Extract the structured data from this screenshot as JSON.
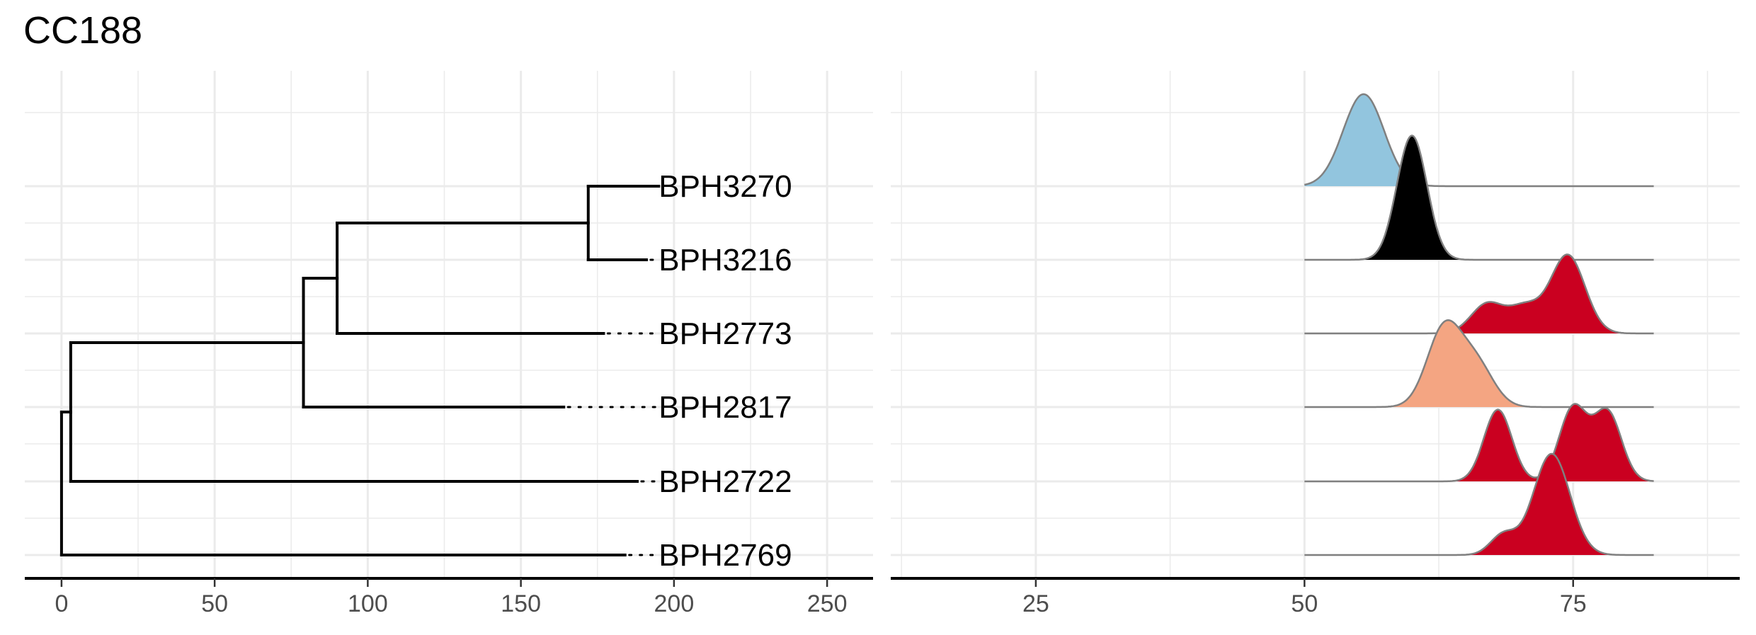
{
  "title": "CC188",
  "colors": {
    "grid": "#ebebeb",
    "axis": "#000000",
    "tree_line": "#000000",
    "tick_text": "#4d4d4d",
    "ridge_outline": "#808080"
  },
  "chart_data": [
    {
      "type": "dendrogram",
      "title": "CC188",
      "xlabel": "",
      "ylabel": "",
      "xlim": [
        -12,
        265
      ],
      "xticks": [
        0,
        50,
        100,
        150,
        200,
        250
      ],
      "xtick_labels": [
        "0",
        "50",
        "100",
        "150",
        "200",
        "250"
      ],
      "grid": true,
      "tips": [
        {
          "label": "BPH3270",
          "branch_end": 195
        },
        {
          "label": "BPH3216",
          "branch_end": 191
        },
        {
          "label": "BPH2773",
          "branch_end": 177
        },
        {
          "label": "BPH2817",
          "branch_end": 164
        },
        {
          "label": "BPH2722",
          "branch_end": 188
        },
        {
          "label": "BPH2769",
          "branch_end": 184
        }
      ],
      "label_x": 195,
      "internal_nodes": [
        {
          "x": 0,
          "children": [
            "N_A",
            "BPH2769"
          ]
        },
        {
          "x": 3,
          "children": [
            "N_B",
            "BPH2722"
          ],
          "id": "N_A"
        },
        {
          "x": 79,
          "children": [
            "N_C",
            "BPH2817"
          ],
          "id": "N_B"
        },
        {
          "x": 90,
          "children": [
            "N_D",
            "BPH2773"
          ],
          "id": "N_C"
        },
        {
          "x": 172,
          "children": [
            "BPH3270",
            "BPH3216"
          ],
          "id": "N_D"
        }
      ]
    },
    {
      "type": "ridgeline",
      "xlabel": "",
      "ylabel": "",
      "xlim": [
        11.5,
        90.5
      ],
      "xticks": [
        25,
        50,
        75
      ],
      "xtick_labels": [
        "25",
        "50",
        "75"
      ],
      "density_range": [
        50,
        82.5
      ],
      "grid": true,
      "rows": [
        {
          "label": "BPH3270",
          "fill": "#92c5de",
          "peaks": [
            {
              "mu": 55.5,
              "sigma": 1.9,
              "amp": 1.0
            }
          ]
        },
        {
          "label": "BPH3216",
          "fill": "#000000",
          "peaks": [
            {
              "mu": 60,
              "sigma": 1.4,
              "amp": 1.35
            }
          ]
        },
        {
          "label": "BPH2773",
          "fill": "#ca0020",
          "peaks": [
            {
              "mu": 74.5,
              "sigma": 1.6,
              "amp": 0.85
            },
            {
              "mu": 70.5,
              "sigma": 1.5,
              "amp": 0.28
            },
            {
              "mu": 67,
              "sigma": 1.5,
              "amp": 0.32
            }
          ]
        },
        {
          "label": "BPH2817",
          "fill": "#f4a582",
          "peaks": [
            {
              "mu": 63,
              "sigma": 1.6,
              "amp": 0.85
            },
            {
              "mu": 66,
              "sigma": 1.6,
              "amp": 0.45
            }
          ]
        },
        {
          "label": "BPH2722",
          "fill": "#ca0020",
          "peaks": [
            {
              "mu": 68,
              "sigma": 1.3,
              "amp": 0.78
            },
            {
              "mu": 75,
              "sigma": 1.3,
              "amp": 0.8
            },
            {
              "mu": 78.2,
              "sigma": 1.3,
              "amp": 0.75
            }
          ]
        },
        {
          "label": "BPH2769",
          "fill": "#ca0020",
          "peaks": [
            {
              "mu": 73,
              "sigma": 1.7,
              "amp": 1.1
            },
            {
              "mu": 68.5,
              "sigma": 1.2,
              "amp": 0.22
            }
          ]
        }
      ]
    }
  ]
}
